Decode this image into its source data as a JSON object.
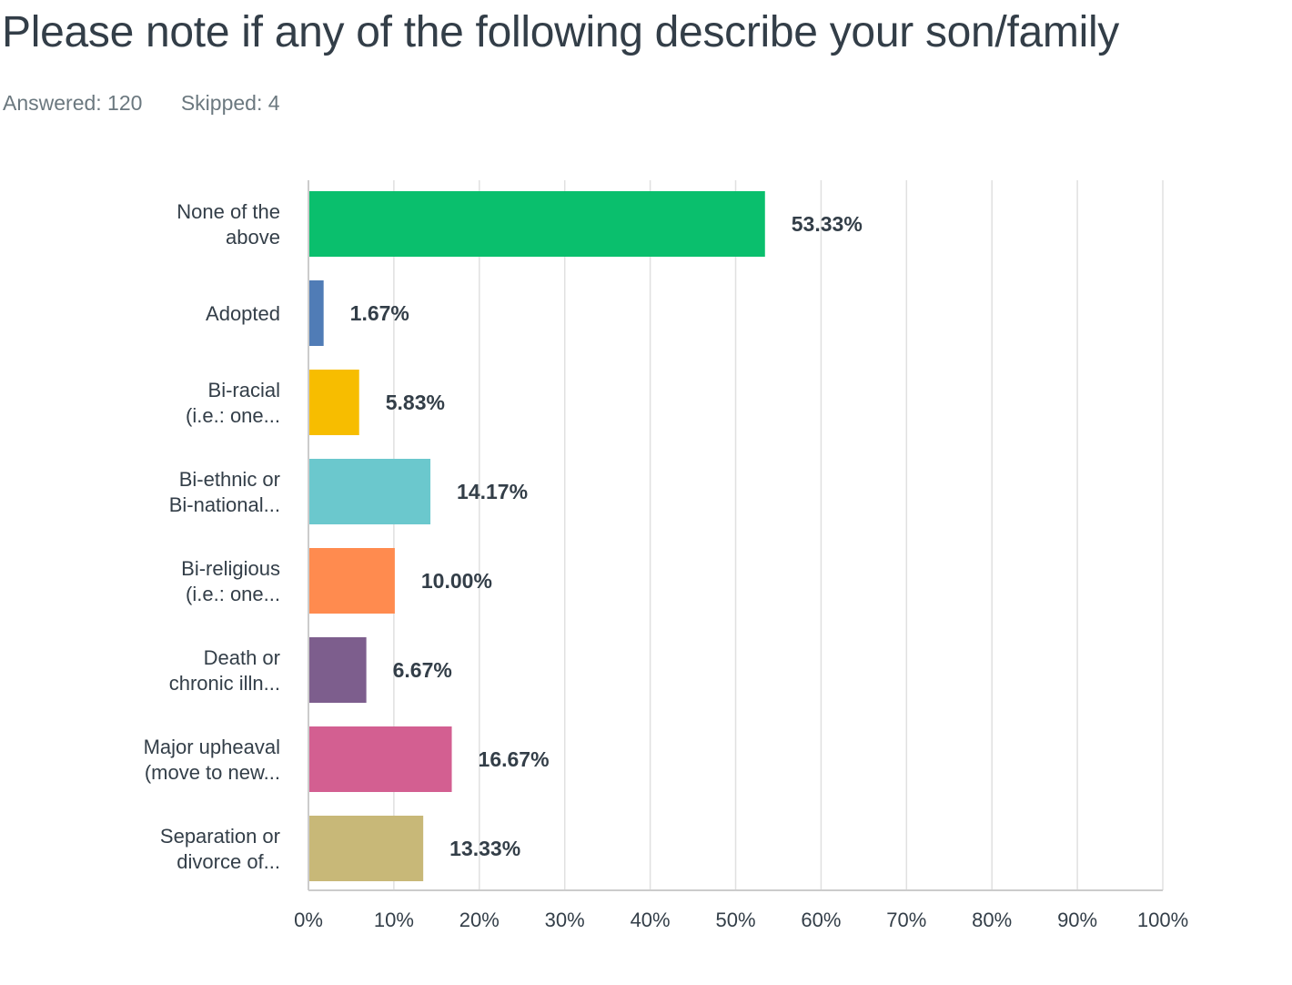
{
  "header": {
    "title": "Please note if any of the following describe your son/family",
    "answered_label": "Answered: 120",
    "skipped_label": "Skipped: 4"
  },
  "chart_data": {
    "type": "bar",
    "orientation": "horizontal",
    "categories": [
      [
        "None of the",
        "above"
      ],
      [
        "Adopted"
      ],
      [
        "Bi-racial",
        "(i.e.: one..."
      ],
      [
        "Bi-ethnic or",
        "Bi-national..."
      ],
      [
        "Bi-religious",
        "(i.e.: one..."
      ],
      [
        "Death or",
        "chronic illn..."
      ],
      [
        "Major upheaval",
        "(move to new..."
      ],
      [
        "Separation or",
        "divorce of..."
      ]
    ],
    "values": [
      53.33,
      1.67,
      5.83,
      14.17,
      10.0,
      6.67,
      16.67,
      13.33
    ],
    "value_labels": [
      "53.33%",
      "1.67%",
      "5.83%",
      "14.17%",
      "10.00%",
      "6.67%",
      "16.67%",
      "13.33%"
    ],
    "colors": [
      "#0abf6d",
      "#507cb6",
      "#f7bd00",
      "#6bc8cd",
      "#ff8b4f",
      "#7d5e8d",
      "#d35f91",
      "#c8b878"
    ],
    "xticks": [
      "0%",
      "10%",
      "20%",
      "30%",
      "40%",
      "50%",
      "60%",
      "70%",
      "80%",
      "90%",
      "100%"
    ],
    "xlim": [
      0,
      100
    ],
    "grid": true,
    "gridline_color": "#e0e0e0",
    "axis_color": "#cccccc"
  }
}
